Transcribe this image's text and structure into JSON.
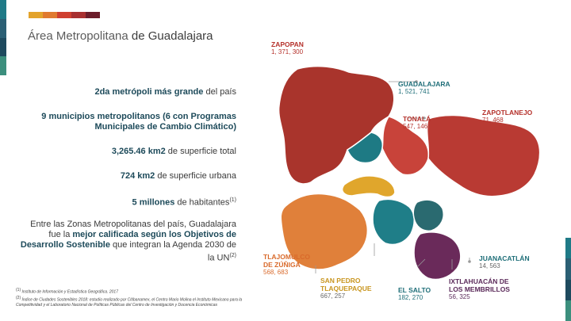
{
  "colors": {
    "strip_top": [
      "#e3a32b",
      "#e07a2f",
      "#cf3f2f",
      "#a83030",
      "#6b1d2a"
    ],
    "strip_left": [
      "#1f7a87",
      "#2b5f74",
      "#1e4a5e",
      "#3c8f7d"
    ],
    "strip_right": [
      "#1f7a87",
      "#2b5f74",
      "#1e4a5e",
      "#3c8f7d"
    ],
    "zapopan": "#a9342c",
    "guadalajara": "#1e7a84",
    "tonala": "#c8433a",
    "zapotlanejo": "#b93a33",
    "tlajomulco": "#e0803a",
    "san_pedro_tlaquepaque": "#e0a62c",
    "el_salto": "#1f7e88",
    "juanacatlan": "#2a6a70",
    "ixtlahuacan": "#6a2a5a"
  },
  "slide": {
    "title_part1": "Área Metropolitana",
    "title_part2": " de Guadalajara"
  },
  "stats": {
    "s1_bold": "2da metrópoli más grande",
    "s1_rest": " del país",
    "s2_bold": "9 municipios metropolitanos (6 con Programas Municipales de Cambio Climático)",
    "s3_bold": "3,265.46 km2",
    "s3_rest": " de superficie total",
    "s4_bold": "724 km2",
    "s4_rest": " de superficie urbana",
    "s5_bold": "5 millones",
    "s5_rest": " de habitantes",
    "s5_sup": "(1)",
    "s6_a": "Entre las Zonas Metropolitanas del país, Guadalajara fue la ",
    "s6_bold": "mejor calificada según los Objetivos de Desarrollo Sostenible",
    "s6_b": " que integran la Agenda 2030 de la UN",
    "s6_sup": "(2)"
  },
  "footnotes": {
    "f1_num": "(1)",
    "f1_text": " Instituto de Información y Estadística Geográfica. 2017",
    "f2_num": "(2)",
    "f2_text": " Índice de Ciudades Sostenibles 2018: estudio realizado por Citibanamex, el Centro Mario Molina el Instituto Mexicano para la Competitividad y el Laboratorio Nacional de Políticas Públicas del Centro de Investigación y Docencia Económicas"
  },
  "map": {
    "zapopan": {
      "name": "ZAPOPAN",
      "population": "1, 371, 300"
    },
    "guadalajara": {
      "name": "GUADALAJARA",
      "population": "1, 521, 741"
    },
    "tonala": {
      "name": "TONALÁ",
      "population": "547, 146"
    },
    "zapotlanejo": {
      "name": "ZAPOTLANEJO",
      "population": "71, 468"
    },
    "tlajomulco": {
      "name_line1": "TLAJOMULCO",
      "name_line2": "DE ZÚÑIGA",
      "population": "568, 683"
    },
    "san_pedro": {
      "name_line1": "SAN PEDRO",
      "name_line2": "TLAQUEPAQUE",
      "population": "667, 257"
    },
    "el_salto": {
      "name": "EL SALTO",
      "population": "182, 270"
    },
    "juanacatlan": {
      "name": "JUANACATLÁN",
      "population": "14, 563"
    },
    "ixtlahuacan": {
      "name_line1": "IXTLAHUACÁN DE",
      "name_line2": "LOS MEMBRILLOS",
      "population": "56, 325"
    }
  }
}
